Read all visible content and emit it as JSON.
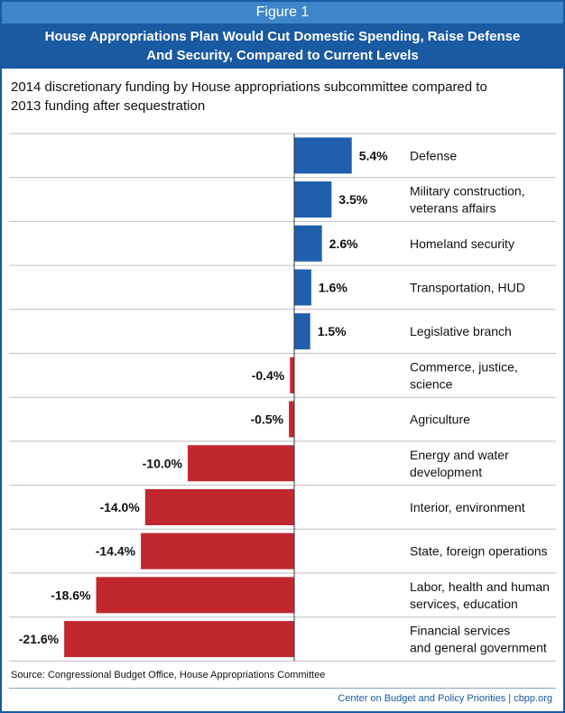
{
  "figure_label": "Figure 1",
  "title_line1": "House Appropriations Plan Would Cut Domestic Spending, Raise Defense",
  "title_line2": "And Security, Compared to Current Levels",
  "subtitle_line1": "2014 discretionary funding by House appropriations subcommittee compared to",
  "subtitle_line2": "2013 funding after sequestration",
  "source": "Source: Congressional Budget Office, House Appropriations Committee",
  "credit": "Center on Budget and Policy Priorities | cbpp.org",
  "colors": {
    "positive": "#1f5fab",
    "negative": "#c0282e",
    "grid": "#bfbfbf",
    "frame": "#1a5aa0"
  },
  "chart_data": {
    "type": "bar",
    "orientation": "horizontal",
    "xlim": [
      -22,
      6
    ],
    "grid": true,
    "items": [
      {
        "label": [
          "Defense"
        ],
        "value": 5.4,
        "value_label": "5.4%"
      },
      {
        "label": [
          "Military construction,",
          "veterans affairs"
        ],
        "value": 3.5,
        "value_label": "3.5%"
      },
      {
        "label": [
          "Homeland security"
        ],
        "value": 2.6,
        "value_label": "2.6%"
      },
      {
        "label": [
          "Transportation, HUD"
        ],
        "value": 1.6,
        "value_label": "1.6%"
      },
      {
        "label": [
          "Legislative branch"
        ],
        "value": 1.5,
        "value_label": "1.5%"
      },
      {
        "label": [
          "Commerce, justice,",
          "science"
        ],
        "value": -0.4,
        "value_label": "-0.4%"
      },
      {
        "label": [
          "Agriculture"
        ],
        "value": -0.5,
        "value_label": "-0.5%"
      },
      {
        "label": [
          "Energy and water",
          "development"
        ],
        "value": -10.0,
        "value_label": "-10.0%"
      },
      {
        "label": [
          "Interior, environment"
        ],
        "value": -14.0,
        "value_label": "-14.0%"
      },
      {
        "label": [
          "State, foreign operations"
        ],
        "value": -14.4,
        "value_label": "-14.4%"
      },
      {
        "label": [
          "Labor, health and human",
          "services, education"
        ],
        "value": -18.6,
        "value_label": "-18.6%"
      },
      {
        "label": [
          "Financial services",
          "and general government"
        ],
        "value": -21.6,
        "value_label": "-21.6%"
      }
    ]
  }
}
